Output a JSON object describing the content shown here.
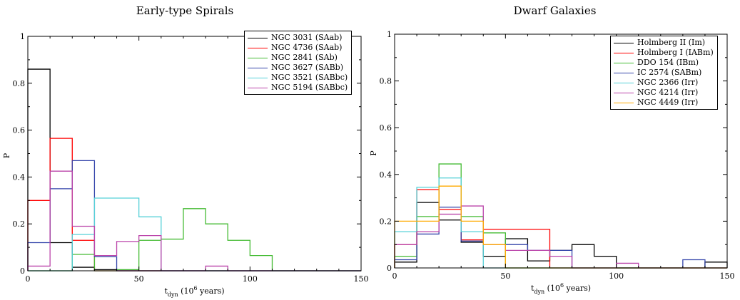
{
  "chart_data": [
    {
      "type": "step",
      "title": "Early-type Spirals",
      "xlabel": "t_dyn (10^6 years)",
      "xlabel_parts": {
        "main": "t",
        "sub": "dyn",
        "open": " (10",
        "sup": "6",
        "close": " years)"
      },
      "ylabel": "P",
      "xlim": [
        0,
        150
      ],
      "ylim": [
        0,
        1
      ],
      "x_ticks": [
        0,
        50,
        100,
        150
      ],
      "y_ticks": [
        0,
        0.2,
        0.4,
        0.6,
        0.8,
        1
      ],
      "x_tick_labels": [
        "0",
        "50",
        "100",
        "150"
      ],
      "y_tick_labels": [
        "0",
        "0.2",
        "0.4",
        "0.6",
        "0.8",
        "1"
      ],
      "bin_edges": [
        0,
        10,
        20,
        30,
        40,
        50,
        60,
        70,
        80,
        90,
        100,
        110,
        120,
        130,
        140,
        150
      ],
      "legend_position": "top-right",
      "series": [
        {
          "name": "NGC 3031 (SAab)",
          "color": "#000000",
          "values": [
            0.86,
            0.12,
            0.015,
            0.005,
            0,
            0,
            0,
            0,
            0,
            0,
            0,
            0,
            0,
            0,
            0
          ]
        },
        {
          "name": "NGC 4736 (SAab)",
          "color": "#ff0000",
          "values": [
            0.3,
            0.565,
            0.13,
            0,
            0,
            0,
            0,
            0,
            0,
            0,
            0,
            0,
            0,
            0,
            0
          ]
        },
        {
          "name": "NGC 2841 (SAb)",
          "color": "#44bb33",
          "values": [
            0,
            0,
            0.07,
            0,
            0.005,
            0.13,
            0.135,
            0.265,
            0.2,
            0.13,
            0.065,
            0,
            0,
            0,
            0
          ]
        },
        {
          "name": "NGC 3627 (SABb)",
          "color": "#3344aa",
          "values": [
            0.12,
            0.35,
            0.47,
            0.06,
            0,
            0,
            0,
            0,
            0,
            0,
            0,
            0,
            0,
            0,
            0
          ]
        },
        {
          "name": "NGC 3521 (SABbc)",
          "color": "#55d0d8",
          "values": [
            0,
            0,
            0.155,
            0.31,
            0.31,
            0.23,
            0,
            0,
            0,
            0,
            0,
            0,
            0,
            0,
            0
          ]
        },
        {
          "name": "NGC 5194 (SABbc)",
          "color": "#bb44aa",
          "values": [
            0.02,
            0.425,
            0.19,
            0.065,
            0.125,
            0.15,
            0,
            0,
            0.02,
            0,
            0,
            0,
            0,
            0,
            0
          ]
        }
      ]
    },
    {
      "type": "step",
      "title": "Dwarf Galaxies",
      "xlabel": "t_dyn (10^6 years)",
      "xlabel_parts": {
        "main": "t",
        "sub": "dyn",
        "open": " (10",
        "sup": "6",
        "close": " years)"
      },
      "ylabel": "P",
      "xlim": [
        0,
        150
      ],
      "ylim": [
        0,
        1
      ],
      "x_ticks": [
        0,
        50,
        100,
        150
      ],
      "y_ticks": [
        0,
        0.2,
        0.4,
        0.6,
        0.8,
        1
      ],
      "x_tick_labels": [
        "0",
        "50",
        "100",
        "150"
      ],
      "y_tick_labels": [
        "0",
        "0.2",
        "0.4",
        "0.6",
        "0.8",
        "1"
      ],
      "bin_edges": [
        0,
        10,
        20,
        30,
        40,
        50,
        60,
        70,
        80,
        90,
        100,
        110,
        120,
        130,
        140,
        150
      ],
      "legend_position": "top-right",
      "series": [
        {
          "name": "Holmberg II (Im)",
          "color": "#000000",
          "values": [
            0.025,
            0.28,
            0.205,
            0.11,
            0.05,
            0.125,
            0.03,
            0.075,
            0.1,
            0.05,
            0,
            0,
            0,
            0,
            0.025
          ]
        },
        {
          "name": "Holmberg I (IABm)",
          "color": "#ff0000",
          "values": [
            0.1,
            0.335,
            0.25,
            0.12,
            0.165,
            0.165,
            0.165,
            0,
            0,
            0,
            0,
            0,
            0,
            0,
            0
          ]
        },
        {
          "name": "DDO 154 (IBm)",
          "color": "#44bb33",
          "values": [
            0.05,
            0.22,
            0.445,
            0.22,
            0.15,
            0,
            0,
            0,
            0,
            0,
            0,
            0,
            0,
            0,
            0
          ]
        },
        {
          "name": "IC 2574 (SABm)",
          "color": "#3344aa",
          "values": [
            0.035,
            0.145,
            0.26,
            0.115,
            0.1,
            0.1,
            0.075,
            0.075,
            0,
            0,
            0,
            0,
            0,
            0.035,
            0
          ]
        },
        {
          "name": "NGC 2366 (Irr)",
          "color": "#55d0d8",
          "values": [
            0.155,
            0.345,
            0.385,
            0.155,
            0,
            0,
            0,
            0,
            0,
            0,
            0,
            0,
            0,
            0,
            0
          ]
        },
        {
          "name": "NGC 4214 (Irr)",
          "color": "#bb44aa",
          "values": [
            0.1,
            0.155,
            0.23,
            0.265,
            0.1,
            0.075,
            0.075,
            0.05,
            0,
            0,
            0.02,
            0,
            0,
            0,
            0
          ]
        },
        {
          "name": "NGC 4449 (Irr)",
          "color": "#ffaa00",
          "values": [
            0.2,
            0.2,
            0.35,
            0.2,
            0.1,
            0,
            0,
            0,
            0,
            0,
            0,
            0,
            0,
            0,
            0
          ]
        }
      ]
    }
  ]
}
